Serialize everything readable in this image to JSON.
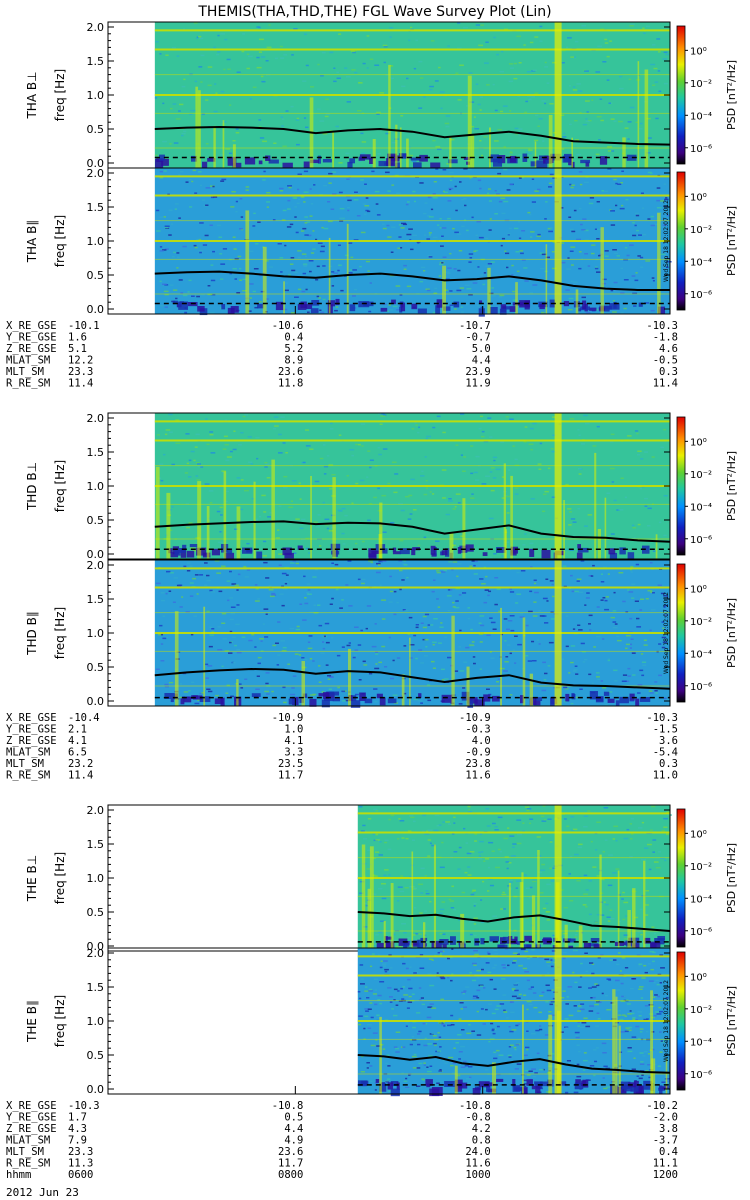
{
  "chart_data": {
    "type": "heatmap",
    "title": "THEMIS(THA,THD,THE) FGL Wave Survey Plot (Lin)",
    "date_label": "2012 Jun 23",
    "time_ticks": [
      "0600",
      "0800",
      "1000",
      "1200"
    ],
    "time_range": [
      600,
      1200
    ],
    "ylim": [
      0,
      2
    ],
    "yticks": [
      "0.0",
      "0.5",
      "1.0",
      "1.5",
      "2.0"
    ],
    "ylabel": "freq [Hz]",
    "colorbar": {
      "label": "PSD [nT²/Hz]",
      "tick_labels": [
        "10⁰",
        "10⁻²",
        "10⁻⁴",
        "10⁻⁶"
      ],
      "range_log10": [
        -7,
        1.5
      ]
    },
    "stamp": "Wed Sep 18 12:02:07 2012",
    "probes": [
      {
        "id": "THA",
        "start_hhmm": 630,
        "panels": [
          {
            "label": "THA B⊥",
            "component": "perp",
            "line_start": [
              0.5,
              0.52,
              0.53,
              0.52,
              0.5,
              0.44,
              0.48,
              0.5,
              0.46,
              0.38,
              0.42,
              0.46,
              0.4,
              0.32,
              0.3,
              0.28,
              0.27
            ],
            "dashed": 0.08
          },
          {
            "label": "THA B∥",
            "component": "par",
            "line_start": [
              0.52,
              0.54,
              0.55,
              0.52,
              0.48,
              0.46,
              0.5,
              0.52,
              0.48,
              0.42,
              0.44,
              0.48,
              0.42,
              0.34,
              0.3,
              0.28,
              0.28
            ],
            "dashed": 0.08
          }
        ],
        "ephemeris_labels": [
          "X_RE_GSE",
          "Y_RE_GSE",
          "Z_RE_GSE",
          "MLAT_SM",
          "MLT_SM",
          "R_RE_SM"
        ],
        "ephemeris": [
          [
            "-10.1",
            "-10.6",
            "-10.7",
            "-10.3"
          ],
          [
            "1.6",
            "0.4",
            "-0.7",
            "-1.8"
          ],
          [
            "5.1",
            "5.2",
            "5.0",
            "4.6"
          ],
          [
            "12.2",
            "8.9",
            "4.4",
            "-0.5"
          ],
          [
            "23.3",
            "23.6",
            "23.9",
            "0.3"
          ],
          [
            "11.4",
            "11.8",
            "11.9",
            "11.4"
          ]
        ]
      },
      {
        "id": "THD",
        "start_hhmm": 630,
        "panels": [
          {
            "label": "THD B⊥",
            "component": "perp",
            "line_start": [
              0.4,
              0.43,
              0.45,
              0.47,
              0.48,
              0.44,
              0.46,
              0.45,
              0.4,
              0.3,
              0.36,
              0.42,
              0.3,
              0.25,
              0.24,
              0.2,
              0.18
            ],
            "dashed": 0.07
          },
          {
            "label": "THD B∥",
            "component": "par",
            "line_start": [
              0.38,
              0.42,
              0.45,
              0.47,
              0.46,
              0.4,
              0.44,
              0.42,
              0.35,
              0.28,
              0.34,
              0.38,
              0.27,
              0.23,
              0.22,
              0.2,
              0.18
            ],
            "dashed": 0.05
          }
        ],
        "ephemeris_labels": [
          "X_RE_GSE",
          "Y_RE_GSE",
          "Z_RE_GSE",
          "MLAT_SM",
          "MLT_SM",
          "R_RE_SM"
        ],
        "ephemeris": [
          [
            "-10.4",
            "-10.9",
            "-10.9",
            "-10.3"
          ],
          [
            "2.1",
            "1.0",
            "-0.3",
            "-1.5"
          ],
          [
            "4.1",
            "4.1",
            "4.0",
            "3.6"
          ],
          [
            "6.5",
            "3.3",
            "-0.9",
            "-5.4"
          ],
          [
            "23.2",
            "23.5",
            "23.8",
            "0.3"
          ],
          [
            "11.4",
            "11.7",
            "11.6",
            "11.0"
          ]
        ]
      },
      {
        "id": "THE",
        "start_hhmm": 840,
        "panels": [
          {
            "label": "THE B⊥",
            "component": "perp",
            "line_start": [
              0.5,
              0.48,
              0.44,
              0.46,
              0.4,
              0.36,
              0.42,
              0.45,
              0.38,
              0.3,
              0.28,
              0.25,
              0.22
            ],
            "dashed": 0.06
          },
          {
            "label": "THE B∥",
            "component": "par",
            "line_start": [
              0.5,
              0.48,
              0.43,
              0.47,
              0.38,
              0.34,
              0.4,
              0.44,
              0.36,
              0.3,
              0.28,
              0.25,
              0.24
            ],
            "dashed": 0.06
          }
        ],
        "ephemeris_labels": [
          "X_RE_GSE",
          "Y_RE_GSE",
          "Z_RE_GSE",
          "MLAT_SM",
          "MLT_SM",
          "R_RE_SM",
          "hhmm"
        ],
        "ephemeris": [
          [
            "-10.3",
            "-10.8",
            "-10.8",
            "-10.2"
          ],
          [
            "1.7",
            "0.5",
            "-0.8",
            "-2.0"
          ],
          [
            "4.3",
            "4.4",
            "4.2",
            "3.8"
          ],
          [
            "7.9",
            "4.9",
            "0.8",
            "-3.7"
          ],
          [
            "23.3",
            "23.6",
            "24.0",
            "0.4"
          ],
          [
            "11.3",
            "11.7",
            "11.6",
            "11.1"
          ],
          [
            "0600",
            "0800",
            "1000",
            "1200"
          ]
        ]
      }
    ]
  },
  "colors": {
    "background": "#ffffff",
    "harmonic_line": "#c8e000",
    "spike": "#d8f000",
    "base": "#30c8a0",
    "low": "#2030c0",
    "trace": "#000000"
  }
}
